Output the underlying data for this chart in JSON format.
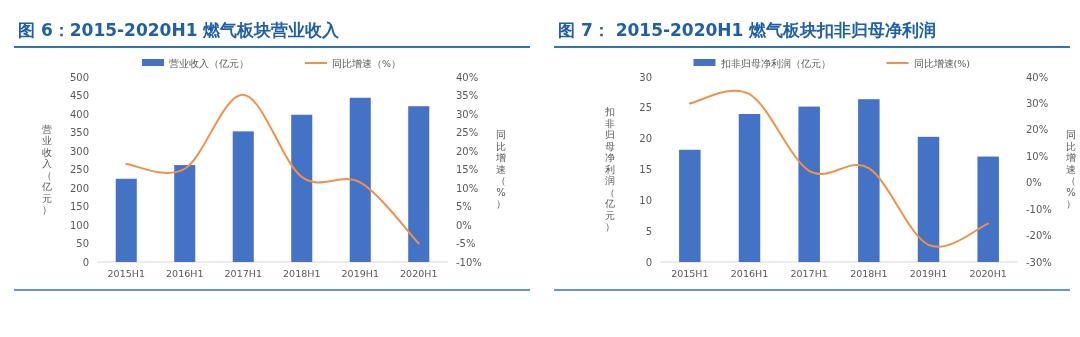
{
  "chart_data": [
    {
      "type": "bar",
      "title": "图 6：2015-2020H1 燃气板块营业收入",
      "ylabel": "营业收入（亿元）",
      "y2label": "同比增速（%）",
      "categories": [
        "2015H1",
        "2016H1",
        "2017H1",
        "2018H1",
        "2019H1",
        "2020H1"
      ],
      "series": [
        {
          "name": "营业收入（亿元）",
          "color": "#4472c4",
          "values": [
            225,
            262,
            353,
            398,
            444,
            421
          ]
        },
        {
          "name": "同比增速（%）",
          "type": "line",
          "axis": "y2",
          "color": "#f0914a",
          "values": [
            16.5,
            15.2,
            35.2,
            13.0,
            11.5,
            -5.0
          ]
        }
      ],
      "ylim": [
        0,
        500
      ],
      "yticks": [
        0,
        50,
        100,
        150,
        200,
        250,
        300,
        350,
        400,
        450,
        500
      ],
      "y2lim": [
        -10,
        40
      ],
      "y2ticks": [
        {
          "value": -10,
          "label": "-10%"
        },
        {
          "value": -5,
          "label": "-5%"
        },
        {
          "value": 0,
          "label": "0%"
        },
        {
          "value": 5,
          "label": "5%"
        },
        {
          "value": 10,
          "label": "10%"
        },
        {
          "value": 15,
          "label": "15%"
        },
        {
          "value": 20,
          "label": "20%"
        },
        {
          "value": 25,
          "label": "25%"
        },
        {
          "value": 30,
          "label": "30%"
        },
        {
          "value": 35,
          "label": "35%"
        },
        {
          "value": 40,
          "label": "40%"
        }
      ],
      "legend": "top",
      "grid": false
    },
    {
      "type": "bar",
      "title": "图 7： 2015-2020H1 燃气板块扣非归母净利润",
      "ylabel": "扣非归母净利润（亿元）",
      "y2label": "同比增速（%）",
      "categories": [
        "2015H1",
        "2016H1",
        "2017H1",
        "2018H1",
        "2019H1",
        "2020H1"
      ],
      "series": [
        {
          "name": "扣非归母净利润（亿元）",
          "color": "#4472c4",
          "values": [
            18.2,
            24.0,
            25.2,
            26.4,
            20.3,
            17.1
          ]
        },
        {
          "name": "同比增速(%)",
          "type": "line",
          "axis": "y2",
          "color": "#f0914a",
          "values": [
            30,
            33.5,
            4.5,
            5.5,
            -23.5,
            -15.5
          ]
        }
      ],
      "ylim": [
        0,
        30
      ],
      "yticks": [
        0,
        5,
        10,
        15,
        20,
        25,
        30
      ],
      "y2lim": [
        -30,
        40
      ],
      "y2ticks": [
        {
          "value": -30,
          "label": "-30%"
        },
        {
          "value": -20,
          "label": "-20%"
        },
        {
          "value": -10,
          "label": "-10%"
        },
        {
          "value": 0,
          "label": "0%"
        },
        {
          "value": 10,
          "label": "10%"
        },
        {
          "value": 20,
          "label": "20%"
        },
        {
          "value": 30,
          "label": "30%"
        },
        {
          "value": 40,
          "label": "40%"
        }
      ],
      "legend": "top",
      "grid": false
    }
  ]
}
